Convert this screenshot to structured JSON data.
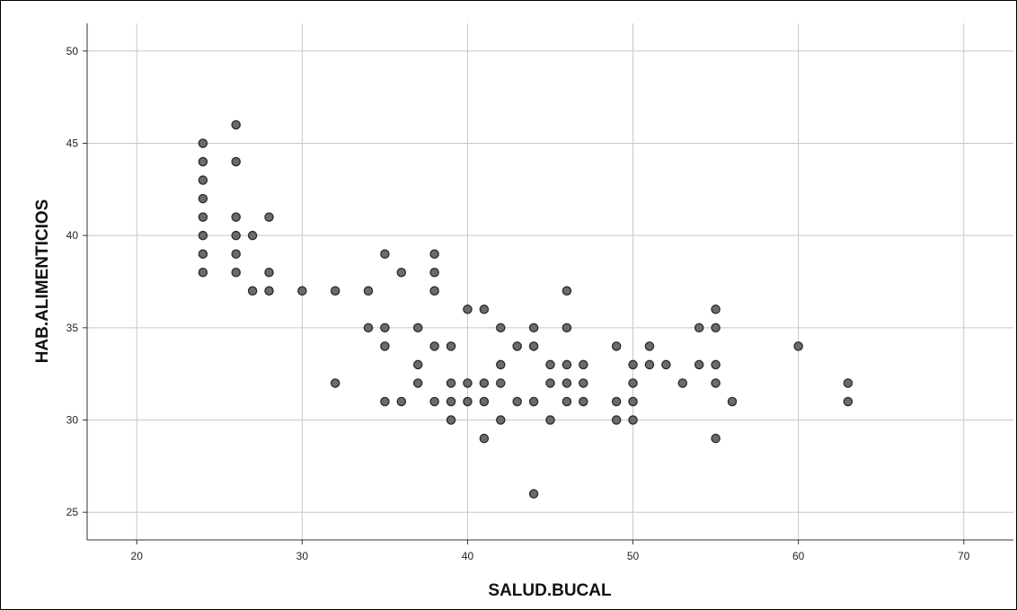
{
  "chart_data": {
    "type": "scatter",
    "xlabel": "SALUD.BUCAL",
    "ylabel": "HAB.ALIMENTICIOS",
    "xlim": [
      17,
      73
    ],
    "ylim": [
      23.5,
      51.5
    ],
    "xticks": [
      20,
      30,
      40,
      50,
      60,
      70
    ],
    "yticks": [
      25,
      30,
      35,
      40,
      45,
      50
    ],
    "grid": true,
    "legend": "none",
    "marker_color": "#6b6b6b",
    "points": [
      [
        24,
        45
      ],
      [
        24,
        44
      ],
      [
        24,
        43
      ],
      [
        24,
        42
      ],
      [
        24,
        41
      ],
      [
        24,
        40
      ],
      [
        24,
        39
      ],
      [
        24,
        38
      ],
      [
        26,
        46
      ],
      [
        26,
        44
      ],
      [
        26,
        41
      ],
      [
        26,
        40
      ],
      [
        26,
        39
      ],
      [
        26,
        38
      ],
      [
        27,
        40
      ],
      [
        27,
        37
      ],
      [
        28,
        41
      ],
      [
        28,
        38
      ],
      [
        28,
        37
      ],
      [
        30,
        37
      ],
      [
        32,
        37
      ],
      [
        32,
        32
      ],
      [
        34,
        37
      ],
      [
        34,
        35
      ],
      [
        35,
        39
      ],
      [
        35,
        35
      ],
      [
        35,
        34
      ],
      [
        35,
        31
      ],
      [
        36,
        38
      ],
      [
        36,
        31
      ],
      [
        37,
        35
      ],
      [
        37,
        33
      ],
      [
        37,
        32
      ],
      [
        38,
        39
      ],
      [
        38,
        38
      ],
      [
        38,
        37
      ],
      [
        38,
        34
      ],
      [
        38,
        31
      ],
      [
        39,
        34
      ],
      [
        39,
        32
      ],
      [
        39,
        31
      ],
      [
        39,
        30
      ],
      [
        40,
        36
      ],
      [
        40,
        32
      ],
      [
        40,
        31
      ],
      [
        41,
        36
      ],
      [
        41,
        32
      ],
      [
        41,
        31
      ],
      [
        41,
        29
      ],
      [
        42,
        35
      ],
      [
        42,
        33
      ],
      [
        42,
        32
      ],
      [
        42,
        30
      ],
      [
        43,
        34
      ],
      [
        43,
        31
      ],
      [
        44,
        35
      ],
      [
        44,
        34
      ],
      [
        44,
        31
      ],
      [
        44,
        26
      ],
      [
        45,
        33
      ],
      [
        45,
        32
      ],
      [
        45,
        30
      ],
      [
        46,
        37
      ],
      [
        46,
        35
      ],
      [
        46,
        33
      ],
      [
        46,
        32
      ],
      [
        46,
        31
      ],
      [
        47,
        33
      ],
      [
        47,
        32
      ],
      [
        47,
        31
      ],
      [
        49,
        34
      ],
      [
        49,
        31
      ],
      [
        49,
        30
      ],
      [
        50,
        33
      ],
      [
        50,
        32
      ],
      [
        50,
        31
      ],
      [
        50,
        30
      ],
      [
        51,
        34
      ],
      [
        51,
        33
      ],
      [
        52,
        33
      ],
      [
        53,
        32
      ],
      [
        54,
        35
      ],
      [
        54,
        33
      ],
      [
        55,
        36
      ],
      [
        55,
        35
      ],
      [
        55,
        33
      ],
      [
        55,
        32
      ],
      [
        55,
        29
      ],
      [
        56,
        31
      ],
      [
        60,
        34
      ],
      [
        63,
        32
      ],
      [
        63,
        31
      ]
    ]
  }
}
